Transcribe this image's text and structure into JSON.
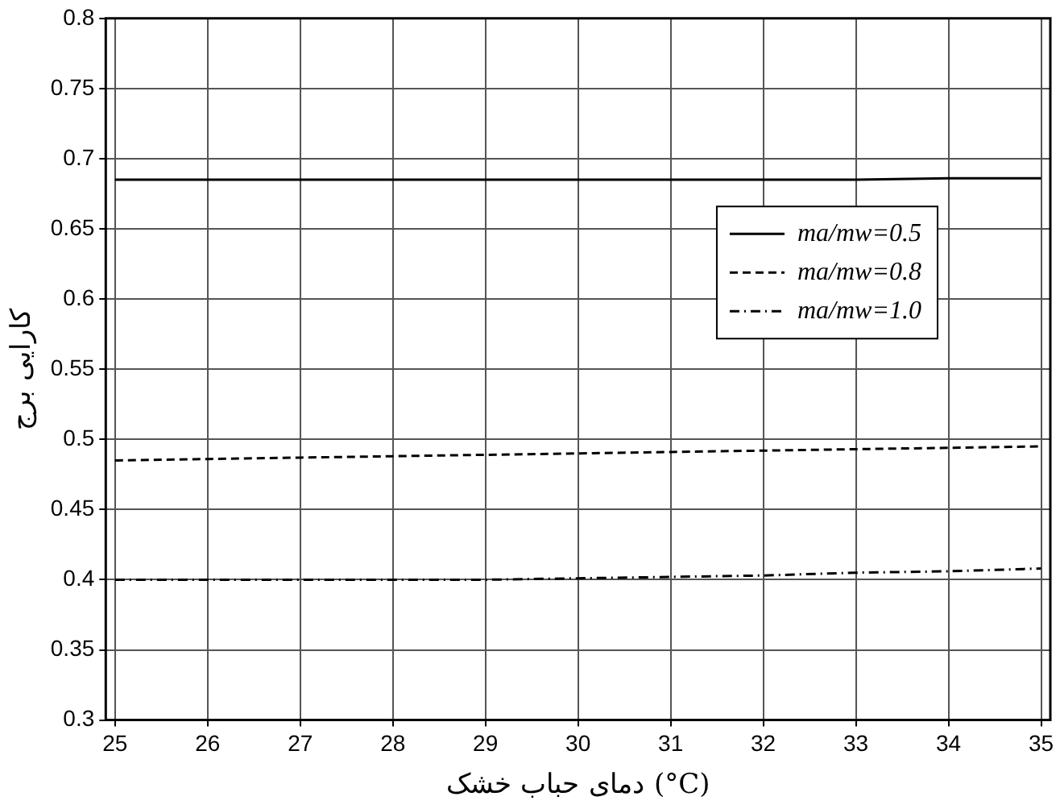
{
  "chart_data": {
    "type": "line",
    "xlabel": "دمای حباب خشک (°C)",
    "ylabel": "کارایی برج",
    "x": [
      25,
      26,
      27,
      28,
      29,
      30,
      31,
      32,
      33,
      34,
      35
    ],
    "series": [
      {
        "name": "ma/mw=0.5",
        "color": "#000000",
        "line_style": "solid",
        "values": [
          0.685,
          0.685,
          0.685,
          0.685,
          0.685,
          0.685,
          0.685,
          0.685,
          0.685,
          0.686,
          0.686
        ]
      },
      {
        "name": "ma/mw=0.8",
        "color": "#000000",
        "line_style": "dashed",
        "values": [
          0.485,
          0.486,
          0.487,
          0.488,
          0.489,
          0.49,
          0.491,
          0.492,
          0.493,
          0.494,
          0.495
        ]
      },
      {
        "name": "ma/mw=1.0",
        "color": "#000000",
        "line_style": "dashdot",
        "values": [
          0.4,
          0.4,
          0.4,
          0.4,
          0.4,
          0.401,
          0.402,
          0.403,
          0.405,
          0.406,
          0.408
        ]
      }
    ],
    "xlim": [
      24.9,
      35.1
    ],
    "xticks": [
      25,
      26,
      27,
      28,
      29,
      30,
      31,
      32,
      33,
      34,
      35
    ],
    "ylim": [
      0.3,
      0.8
    ],
    "yticks": [
      0.3,
      0.35,
      0.4,
      0.45,
      0.5,
      0.55,
      0.6,
      0.65,
      0.7,
      0.75,
      0.8
    ],
    "grid": true,
    "legend": "right",
    "marker": "none"
  }
}
